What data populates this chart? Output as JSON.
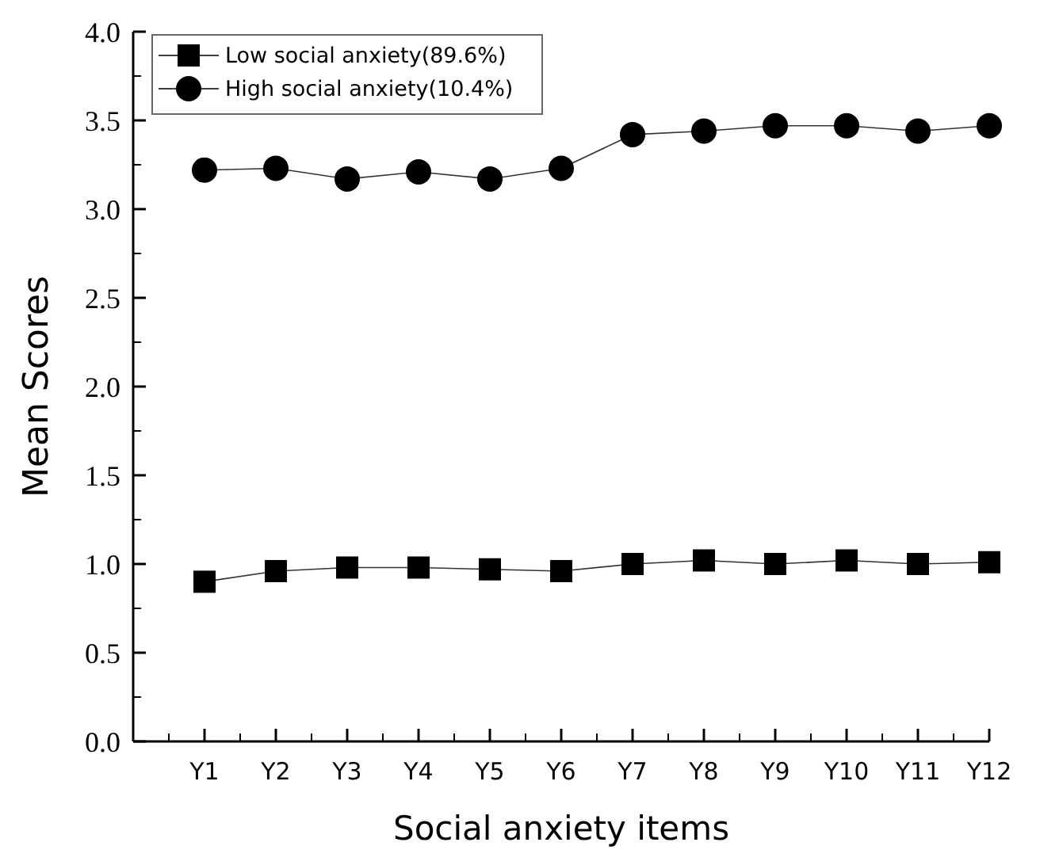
{
  "chart_data": {
    "type": "line",
    "xlabel": "Social anxiety items",
    "ylabel": "Mean Scores",
    "categories": [
      "Y1",
      "Y2",
      "Y3",
      "Y4",
      "Y5",
      "Y6",
      "Y7",
      "Y8",
      "Y9",
      "Y10",
      "Y11",
      "Y12"
    ],
    "series": [
      {
        "name": "Low social anxiety(89.6%)",
        "color": "#000000",
        "marker": "square",
        "values": [
          0.9,
          0.96,
          0.98,
          0.98,
          0.97,
          0.96,
          1.0,
          1.02,
          1.0,
          1.02,
          1.0,
          1.01
        ]
      },
      {
        "name": "High social anxiety(10.4%)",
        "color": "#000000",
        "marker": "circle",
        "values": [
          3.22,
          3.23,
          3.17,
          3.21,
          3.17,
          3.23,
          3.42,
          3.44,
          3.47,
          3.47,
          3.44,
          3.47
        ]
      }
    ],
    "ylim": [
      0,
      4
    ],
    "yticks": [
      {
        "value": 0,
        "label": "0.0"
      },
      {
        "value": 0.5,
        "label": "0.5"
      },
      {
        "value": 1,
        "label": "1.0"
      },
      {
        "value": 1.5,
        "label": "1.5"
      },
      {
        "value": 2,
        "label": "2.0"
      },
      {
        "value": 2.5,
        "label": "2.5"
      },
      {
        "value": 3,
        "label": "3.0"
      },
      {
        "value": 3.5,
        "label": "3.5"
      },
      {
        "value": 4,
        "label": "4.0"
      }
    ],
    "grid": false,
    "legend": "top left",
    "line_style": "solid"
  }
}
